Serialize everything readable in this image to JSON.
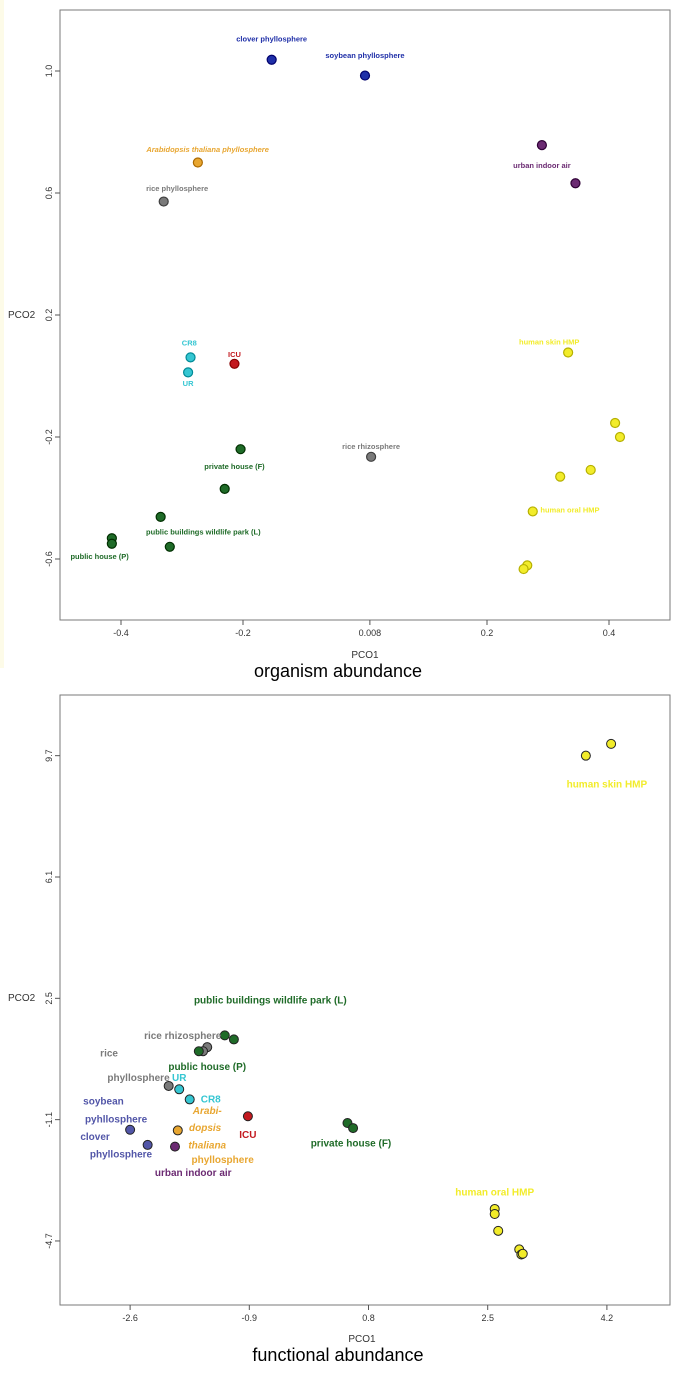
{
  "chart_data": [
    {
      "type": "scatter",
      "caption": "organism abundance",
      "xlabel": "PCO1",
      "ylabel": "PCO2",
      "xlim": [
        -0.5,
        0.5
      ],
      "ylim": [
        -0.8,
        1.2
      ],
      "xticks": [
        -0.4,
        -0.2,
        0.008,
        0.2,
        0.4
      ],
      "yticks": [
        -0.6,
        -0.2,
        0.2,
        0.6,
        1.0
      ],
      "xtick_labels": [
        "-0.4",
        "-0.2",
        "0.008",
        "0.2",
        "0.4"
      ],
      "ytick_labels": [
        "-0.6",
        "-0.2",
        "0.2",
        "0.6",
        "1.0"
      ],
      "grid": false,
      "groups": [
        {
          "label": "clover phyllosphere",
          "color": "#1f2fa8",
          "points": [
            [
              -0.153,
              1.037
            ]
          ],
          "label_pos": [
            -0.153,
            1.096
          ]
        },
        {
          "label": "soybean phyllosphere",
          "color": "#1f2fa8",
          "points": [
            [
              0.0,
              0.985
            ]
          ],
          "label_pos": [
            0.0,
            1.042
          ]
        },
        {
          "label": "Arabidopsis thaliana phyllosphere",
          "color": "#e8a630",
          "points": [
            [
              -0.274,
              0.7
            ]
          ],
          "label_pos": [
            -0.258,
            0.735
          ],
          "italic": true
        },
        {
          "label": "urban indoor air",
          "color": "#6b2a72",
          "points": [
            [
              0.29,
              0.757
            ],
            [
              0.345,
              0.632
            ]
          ],
          "label_pos": [
            0.29,
            0.682
          ]
        },
        {
          "label": "rice phyllosphere",
          "color": "#7a7a7a",
          "points": [
            [
              -0.33,
              0.572
            ]
          ],
          "label_pos": [
            -0.308,
            0.607
          ]
        },
        {
          "label": "CR8",
          "color": "#35c6d2",
          "points": [
            [
              -0.286,
              0.061
            ]
          ],
          "label_pos": [
            -0.288,
            0.1
          ]
        },
        {
          "label": "UR",
          "color": "#35c6d2",
          "points": [
            [
              -0.29,
              0.012
            ]
          ],
          "label_pos": [
            -0.29,
            -0.033
          ]
        },
        {
          "label": "ICU",
          "color": "#c3191f",
          "points": [
            [
              -0.214,
              0.04
            ]
          ],
          "label_pos": [
            -0.214,
            0.062
          ]
        },
        {
          "label": "human skin HMP",
          "color": "#f2ec2a",
          "points": [
            [
              0.333,
              0.077
            ]
          ],
          "label_pos": [
            0.302,
            0.104
          ]
        },
        {
          "label": "human oral HMP",
          "color": "#f2ec2a",
          "points": [
            [
              0.41,
              -0.154
            ],
            [
              0.418,
              -0.2
            ],
            [
              0.37,
              -0.308
            ],
            [
              0.32,
              -0.33
            ],
            [
              0.275,
              -0.444
            ],
            [
              0.266,
              -0.621
            ],
            [
              0.26,
              -0.633
            ]
          ],
          "label_pos": [
            0.336,
            -0.447
          ]
        },
        {
          "label": "private house (F)",
          "color": "#1f6b28",
          "points": [
            [
              -0.204,
              -0.24
            ],
            [
              -0.23,
              -0.37
            ]
          ],
          "label_pos": [
            -0.214,
            -0.305
          ]
        },
        {
          "label": "rice rhizosphere",
          "color": "#7a7a7a",
          "points": [
            [
              0.01,
              -0.265
            ]
          ],
          "label_pos": [
            0.01,
            -0.24
          ]
        },
        {
          "label": "public buildings wildlife park (L)",
          "color": "#1f6b28",
          "points": [
            [
              -0.335,
              -0.462
            ],
            [
              -0.32,
              -0.56
            ]
          ],
          "label_pos": [
            -0.265,
            -0.52
          ]
        },
        {
          "label": "public house (P)",
          "color": "#1f6b28",
          "points": [
            [
              -0.415,
              -0.532
            ],
            [
              -0.415,
              -0.55
            ]
          ],
          "label_pos": [
            -0.435,
            -0.6
          ]
        }
      ]
    },
    {
      "type": "scatter",
      "caption": "functional abundance",
      "xlabel": "PCO1",
      "ylabel": "PCO2",
      "xlim": [
        -3.6,
        5.1
      ],
      "ylim": [
        -6.6,
        11.5
      ],
      "xticks": [
        -2.6,
        -0.9,
        0.8,
        2.5,
        4.2
      ],
      "yticks": [
        -4.7,
        -1.1,
        2.5,
        6.1,
        9.7
      ],
      "xtick_labels": [
        "-2.6",
        "-0.9",
        "0.8",
        "2.5",
        "4.2"
      ],
      "ytick_labels": [
        "-4.7",
        "-1.1",
        "2.5",
        "6.1",
        "9.7"
      ],
      "grid": false,
      "groups": [
        {
          "label": "human skin HMP",
          "color": "#f2ec2a",
          "points": [
            [
              4.26,
              10.05
            ],
            [
              3.9,
              9.7
            ]
          ],
          "label_pos": [
            4.2,
            8.75
          ]
        },
        {
          "label": "public buildings wildlife park (L)",
          "color": "#1f6b28",
          "points": [
            [
              -1.25,
              1.4
            ],
            [
              -1.12,
              1.28
            ]
          ],
          "label_pos": [
            -0.6,
            2.35
          ]
        },
        {
          "label": "rice rhizosphere",
          "color": "#7a7a7a",
          "points": [
            [
              -1.5,
              1.05
            ],
            [
              -1.56,
              0.93
            ]
          ],
          "label_pos": [
            -1.85,
            1.3
          ]
        },
        {
          "label": "public house (P)",
          "color": "#1f6b28",
          "points": [
            [
              -1.62,
              0.93
            ]
          ],
          "label_pos": [
            -1.5,
            0.37
          ]
        },
        {
          "label": "rice",
          "color": "#7a7a7a",
          "points": [
            [
              -2.05,
              -0.1
            ]
          ],
          "label_pos": [
            -2.9,
            0.77
          ]
        },
        {
          "label": "phyllosphere",
          "color": "#7a7a7a",
          "points": [],
          "label_pos": [
            -2.48,
            0.05
          ]
        },
        {
          "label": "UR",
          "color": "#35c6d2",
          "points": [
            [
              -1.9,
              -0.2
            ]
          ],
          "label_pos": [
            -1.9,
            0.04
          ]
        },
        {
          "label": "CR8",
          "color": "#35c6d2",
          "points": [
            [
              -1.75,
              -0.5
            ]
          ],
          "label_pos": [
            -1.45,
            -0.59
          ]
        },
        {
          "label": "soybean",
          "color": "#5256a8",
          "points": [
            [
              -2.6,
              -1.4
            ]
          ],
          "label_pos": [
            -2.98,
            -0.65
          ]
        },
        {
          "label": "pyhllosphere",
          "color": "#5256a8",
          "points": [],
          "label_pos": [
            -2.8,
            -1.18
          ]
        },
        {
          "label": "clover",
          "color": "#5256a8",
          "points": [
            [
              -2.35,
              -1.85
            ]
          ],
          "label_pos": [
            -3.1,
            -1.7
          ]
        },
        {
          "label": "phyllosphere",
          "color": "#5256a8",
          "points": [],
          "label_pos": [
            -2.73,
            -2.23
          ]
        },
        {
          "label": "Arabi-",
          "color": "#e8a630",
          "points": [
            [
              -1.92,
              -1.42
            ]
          ],
          "label_pos": [
            -1.5,
            -0.93
          ],
          "italic": true
        },
        {
          "label": "dopsis",
          "color": "#e8a630",
          "points": [],
          "label_pos": [
            -1.53,
            -1.43
          ],
          "italic": true
        },
        {
          "label": "thaliana",
          "color": "#e8a630",
          "points": [],
          "label_pos": [
            -1.5,
            -1.96
          ],
          "italic": true
        },
        {
          "label": "phyllosphere",
          "color": "#e8a630",
          "points": [],
          "label_pos": [
            -1.28,
            -2.38
          ]
        },
        {
          "label": "urban indoor air",
          "color": "#6b2a72",
          "points": [
            [
              -1.96,
              -1.9
            ]
          ],
          "label_pos": [
            -1.7,
            -2.77
          ]
        },
        {
          "label": "ICU",
          "color": "#c3191f",
          "points": [
            [
              -0.92,
              -1.0
            ]
          ],
          "label_pos": [
            -0.92,
            -1.65
          ]
        },
        {
          "label": "private house (F)",
          "color": "#1f6b28",
          "points": [
            [
              0.5,
              -1.2
            ],
            [
              0.58,
              -1.35
            ]
          ],
          "label_pos": [
            0.55,
            -1.9
          ]
        },
        {
          "label": "human oral HMP",
          "color": "#f2ec2a",
          "points": [
            [
              2.6,
              -3.75
            ],
            [
              2.6,
              -3.9
            ],
            [
              2.65,
              -4.4
            ],
            [
              2.95,
              -4.95
            ],
            [
              2.98,
              -5.1
            ],
            [
              3.0,
              -5.08
            ]
          ],
          "label_pos": [
            2.6,
            -3.35
          ]
        }
      ]
    }
  ]
}
